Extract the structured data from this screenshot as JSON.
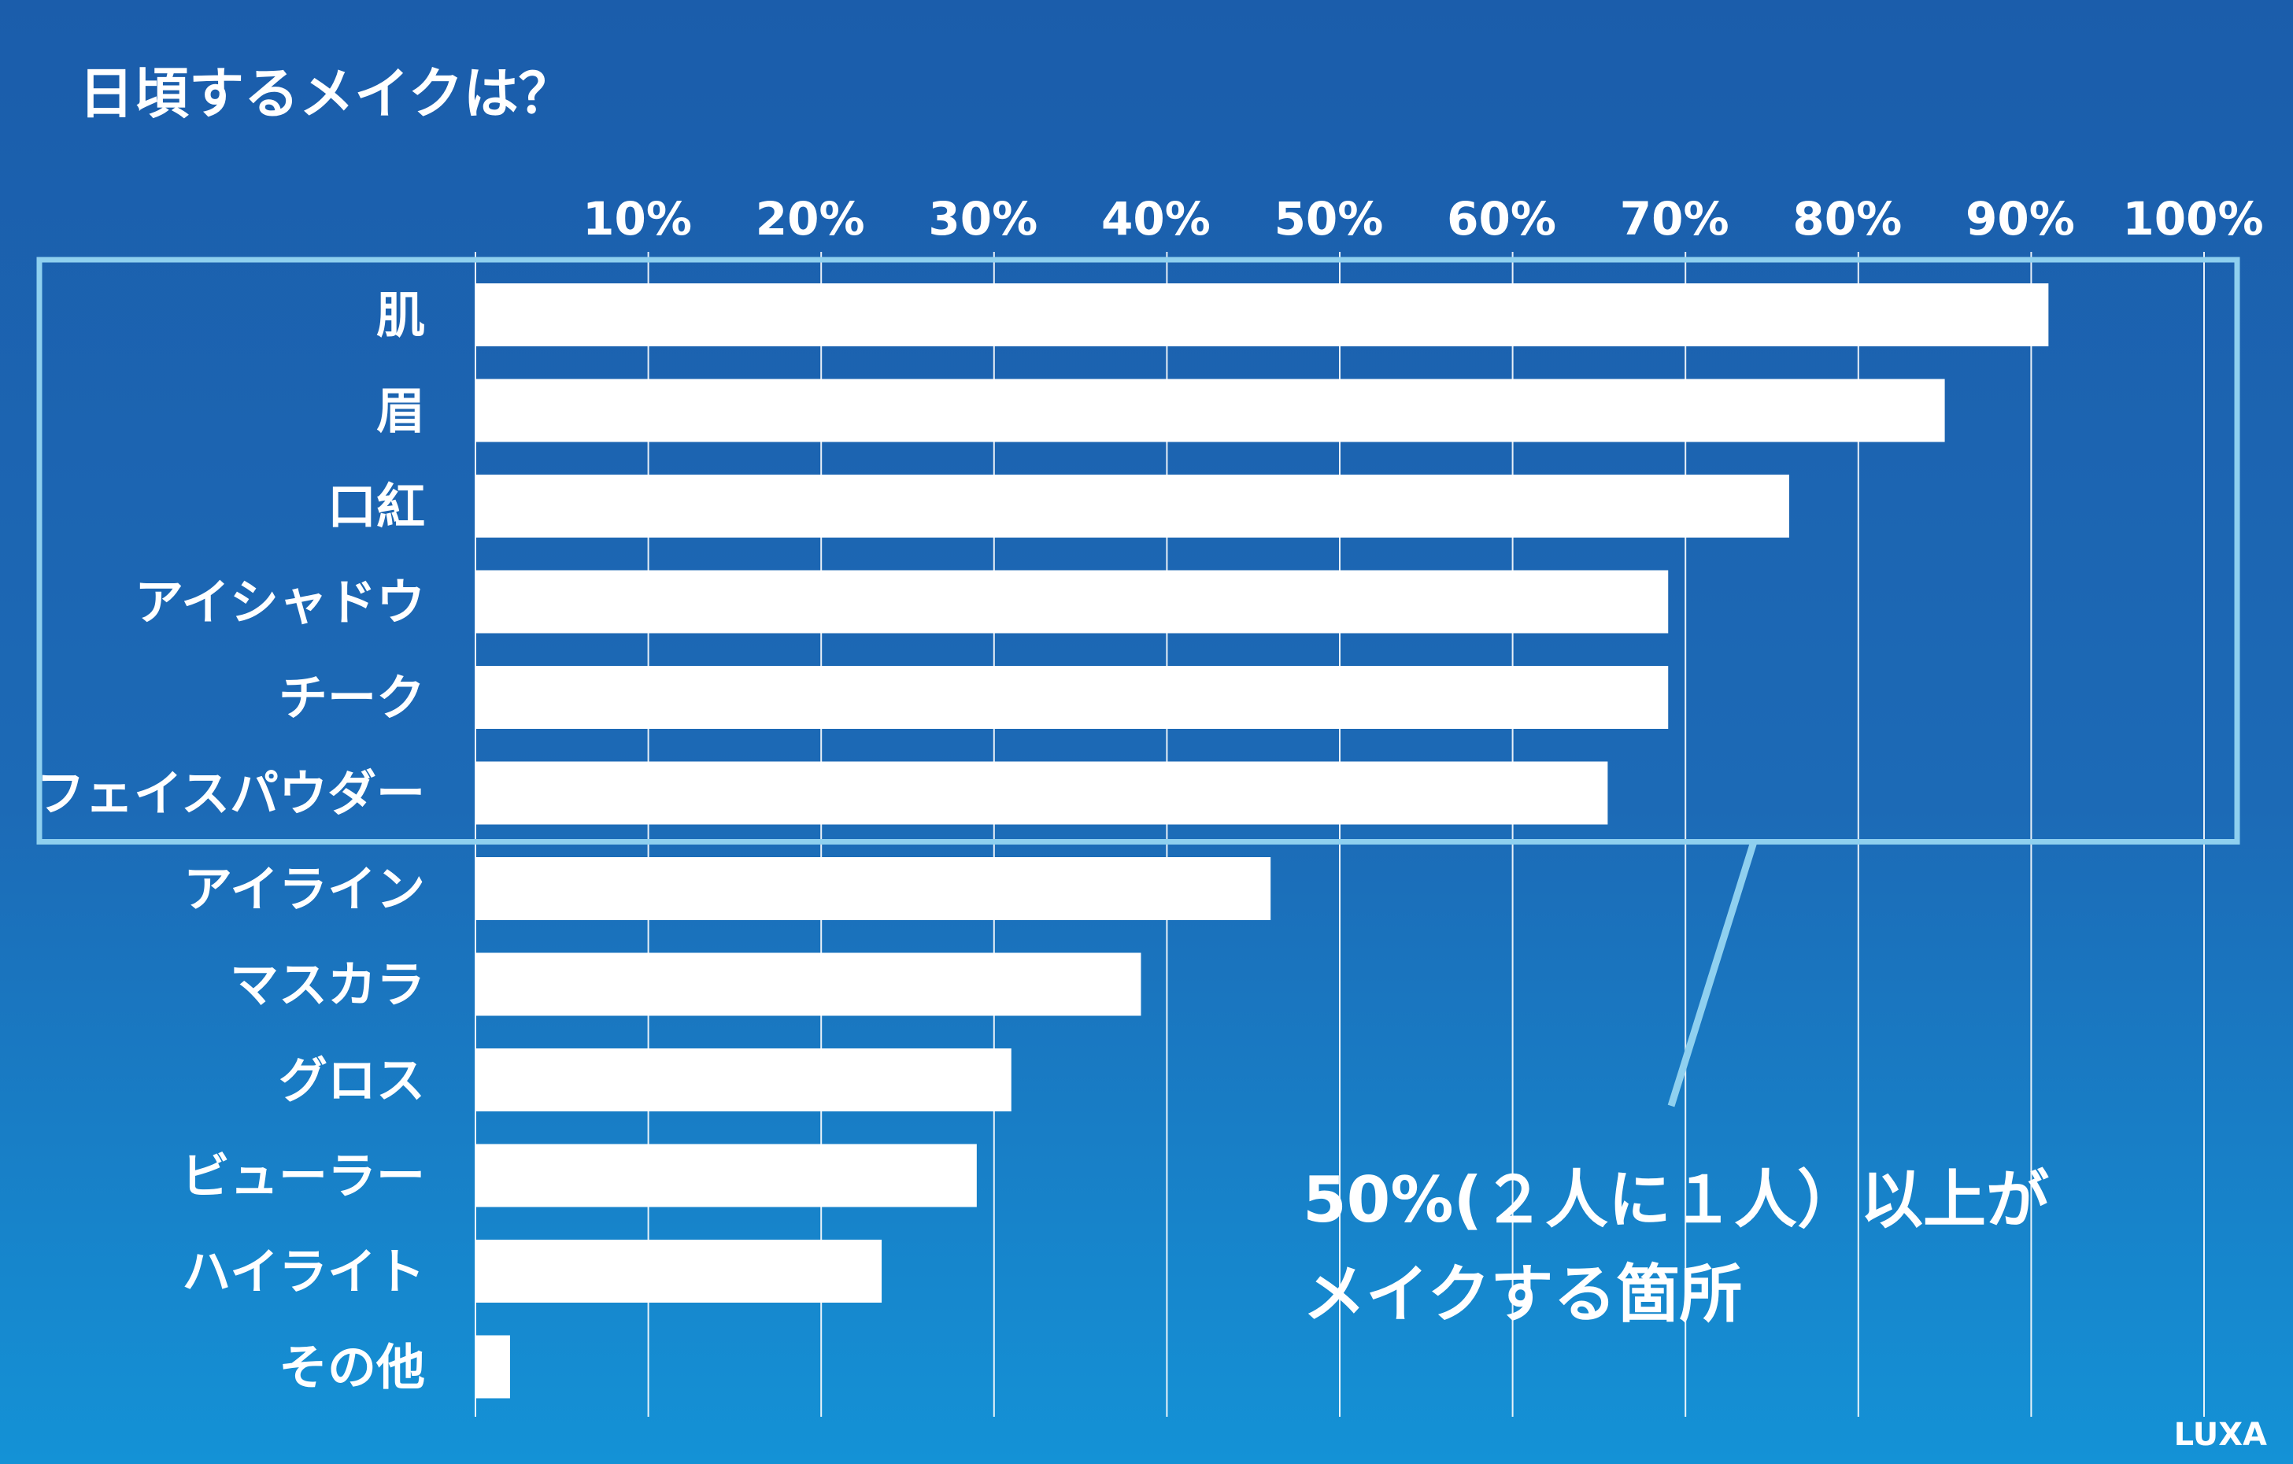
{
  "title": "日頃するメイクは？",
  "logo": "LUXA",
  "callout": {
    "line1": "50%(２人に１人）以上が",
    "line2": "メイクする箇所"
  },
  "colors": {
    "bar": "#ffffff",
    "grid": "#ffffff",
    "highlight_frame": "#8fd0ef",
    "text": "#ffffff"
  },
  "chart_data": {
    "type": "bar",
    "orientation": "horizontal",
    "xlim": [
      0,
      100
    ],
    "x_ticks": [
      "10%",
      "20%",
      "30%",
      "40%",
      "50%",
      "60%",
      "70%",
      "80%",
      "90%",
      "100%"
    ],
    "x_tick_values": [
      10,
      20,
      30,
      40,
      50,
      60,
      70,
      80,
      90,
      100
    ],
    "grid": true,
    "categories": [
      "肌",
      "眉",
      "口紅",
      "アイシャドウ",
      "チーク",
      "フェイスパウダー",
      "アイライン",
      "マスカラ",
      "グロス",
      "ビューラー",
      "ハイライト",
      "その他"
    ],
    "values": [
      91,
      85,
      76,
      69,
      69,
      65.5,
      46,
      38.5,
      31,
      29,
      23.5,
      2
    ],
    "highlighted_categories": [
      "肌",
      "眉",
      "口紅",
      "アイシャドウ",
      "チーク",
      "フェイスパウダー"
    ]
  }
}
